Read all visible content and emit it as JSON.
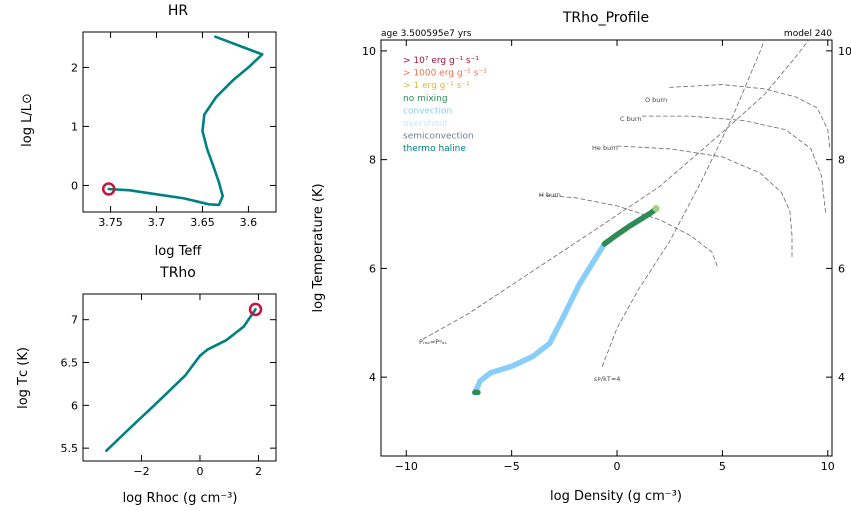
{
  "hr": {
    "title": "HR",
    "xlabel": "log Teff",
    "ylabel": "log L/L⊙"
  },
  "trho": {
    "title": "TRho",
    "xlabel": "log Rhoᴄ (g cm⁻³)",
    "ylabel": "log Tᴄ (K)"
  },
  "profile": {
    "title": "TRho_Profile",
    "age": "age 3.500595e7 yrs",
    "model": "model 240",
    "xlabel": "log Density (g cm⁻³)",
    "ylabel": "log Temperature (K)"
  },
  "legend": [
    {
      "text": "> 10⁷ erg g⁻¹ s⁻¹",
      "color": "#b0113a"
    },
    {
      "text": "> 1000 erg g⁻¹ s⁻¹",
      "color": "#e8704c"
    },
    {
      "text": "> 1 erg g⁻¹ s⁻¹",
      "color": "#e6b82d"
    },
    {
      "text": "no mixing",
      "color": "#2e8b57"
    },
    {
      "text": "convection",
      "color": "#87cefa"
    },
    {
      "text": "overshoot",
      "color": "#c8e8f6"
    },
    {
      "text": "semiconvection",
      "color": "#708090"
    },
    {
      "text": "thermo haline",
      "color": "#008080"
    }
  ],
  "burn_labels": {
    "o": "O burn",
    "c": "C burn",
    "he": "He burn",
    "h": "H burn",
    "prad": "Pᵣₐₔ≈Pᵍₐₛ",
    "eps": "εᴘ/kT≈4"
  },
  "chart_data": [
    {
      "type": "line",
      "title": "HR",
      "xlabel": "log Teff",
      "ylabel": "log L/L⊙",
      "xlim": [
        3.78,
        3.57
      ],
      "ylim": [
        -0.45,
        2.6
      ],
      "xticks": [
        3.75,
        3.7,
        3.65,
        3.6
      ],
      "yticks": [
        0,
        1,
        2
      ],
      "series": [
        {
          "color": "#008080",
          "points": [
            [
              3.636,
              2.52
            ],
            [
              3.585,
              2.22
            ],
            [
              3.6,
              2.0
            ],
            [
              3.617,
              1.78
            ],
            [
              3.635,
              1.5
            ],
            [
              3.648,
              1.2
            ],
            [
              3.65,
              0.92
            ],
            [
              3.645,
              0.62
            ],
            [
              3.638,
              0.32
            ],
            [
              3.632,
              0.05
            ],
            [
              3.628,
              -0.18
            ],
            [
              3.632,
              -0.33
            ],
            [
              3.643,
              -0.32
            ],
            [
              3.67,
              -0.22
            ],
            [
              3.7,
              -0.15
            ],
            [
              3.73,
              -0.08
            ],
            [
              3.752,
              -0.06
            ]
          ]
        }
      ],
      "marker": {
        "x": 3.752,
        "y": -0.06,
        "color": "#c8143c"
      }
    },
    {
      "type": "line",
      "title": "TRho",
      "xlabel": "log Rhoᴄ (g cm⁻³)",
      "ylabel": "log Tᴄ (K)",
      "xlim": [
        -4.0,
        2.6
      ],
      "ylim": [
        5.35,
        7.3
      ],
      "xticks": [
        -2,
        0,
        2
      ],
      "yticks": [
        5.5,
        6,
        6.5,
        7
      ],
      "series": [
        {
          "color": "#008080",
          "points": [
            [
              -3.2,
              5.47
            ],
            [
              -2.5,
              5.7
            ],
            [
              -1.5,
              6.02
            ],
            [
              -0.5,
              6.35
            ],
            [
              0.0,
              6.58
            ],
            [
              0.25,
              6.65
            ],
            [
              0.9,
              6.76
            ],
            [
              1.5,
              6.92
            ],
            [
              1.9,
              7.12
            ]
          ]
        }
      ],
      "marker": {
        "x": 1.9,
        "y": 7.12,
        "color": "#c8143c"
      }
    },
    {
      "type": "line",
      "title": "TRho_Profile",
      "xlabel": "log Density (g cm⁻³)",
      "ylabel": "log Temperature (K)",
      "xlim": [
        -11.2,
        10.2
      ],
      "ylim": [
        2.55,
        10.2
      ],
      "xticks": [
        -10,
        -5,
        0,
        5,
        10
      ],
      "yticks": [
        4,
        6,
        8,
        10
      ],
      "series": [
        {
          "name": "convection",
          "color": "#87cefa",
          "points": [
            [
              -6.7,
              3.75
            ],
            [
              -6.5,
              3.93
            ],
            [
              -6.0,
              4.08
            ],
            [
              -5.0,
              4.2
            ],
            [
              -4.0,
              4.38
            ],
            [
              -3.2,
              4.62
            ],
            [
              -2.5,
              5.15
            ],
            [
              -1.8,
              5.7
            ],
            [
              -1.0,
              6.2
            ],
            [
              -0.6,
              6.45
            ]
          ]
        },
        {
          "name": "no mixing",
          "color": "#2e8b57",
          "points": [
            [
              -0.6,
              6.45
            ],
            [
              0.0,
              6.62
            ],
            [
              0.6,
              6.78
            ],
            [
              1.1,
              6.9
            ],
            [
              1.6,
              7.02
            ],
            [
              1.8,
              7.08
            ]
          ]
        },
        {
          "name": "no mixing (surface)",
          "color": "#2e8b57",
          "points": [
            [
              -6.75,
              3.72
            ],
            [
              -6.6,
              3.72
            ]
          ]
        }
      ],
      "reference_lines": [
        {
          "name": "Pᵣₐₔ≈Pᵍₐₛ",
          "points": [
            [
              -9.2,
              4.7
            ],
            [
              -7.0,
              5.18
            ],
            [
              -4.0,
              5.95
            ],
            [
              -1.0,
              6.72
            ],
            [
              2.0,
              7.5
            ],
            [
              5.0,
              8.5
            ],
            [
              7.0,
              9.2
            ],
            [
              8.5,
              9.9
            ],
            [
              9.1,
              10.2
            ]
          ]
        },
        {
          "name": "εᴘ/kT≈4",
          "points": [
            [
              -0.7,
              4.2
            ],
            [
              0.0,
              4.9
            ],
            [
              1.0,
              5.6
            ],
            [
              2.5,
              6.5
            ],
            [
              4.0,
              7.6
            ],
            [
              5.5,
              8.8
            ],
            [
              6.8,
              10.0
            ],
            [
              7.0,
              10.2
            ]
          ]
        },
        {
          "name": "H burn",
          "points": [
            [
              -3.7,
              7.35
            ],
            [
              -2.0,
              7.3
            ],
            [
              0.0,
              7.15
            ],
            [
              2.0,
              6.9
            ],
            [
              3.5,
              6.6
            ],
            [
              4.5,
              6.3
            ],
            [
              4.8,
              6.0
            ]
          ]
        },
        {
          "name": "He burn",
          "points": [
            [
              0.0,
              8.25
            ],
            [
              2.5,
              8.2
            ],
            [
              5.0,
              8.05
            ],
            [
              6.8,
              7.75
            ],
            [
              7.8,
              7.4
            ],
            [
              8.2,
              7.05
            ],
            [
              8.3,
              6.6
            ],
            [
              8.3,
              6.2
            ]
          ]
        },
        {
          "name": "C burn",
          "points": [
            [
              1.2,
              8.8
            ],
            [
              3.5,
              8.8
            ],
            [
              6.0,
              8.72
            ],
            [
              8.0,
              8.55
            ],
            [
              9.2,
              8.2
            ],
            [
              9.7,
              7.7
            ],
            [
              9.9,
              7.0
            ]
          ]
        },
        {
          "name": "O burn",
          "points": [
            [
              2.5,
              9.33
            ],
            [
              5.0,
              9.38
            ],
            [
              7.0,
              9.3
            ],
            [
              8.5,
              9.15
            ],
            [
              9.5,
              8.95
            ],
            [
              10.0,
              8.55
            ],
            [
              10.1,
              8.2
            ]
          ]
        }
      ]
    }
  ]
}
